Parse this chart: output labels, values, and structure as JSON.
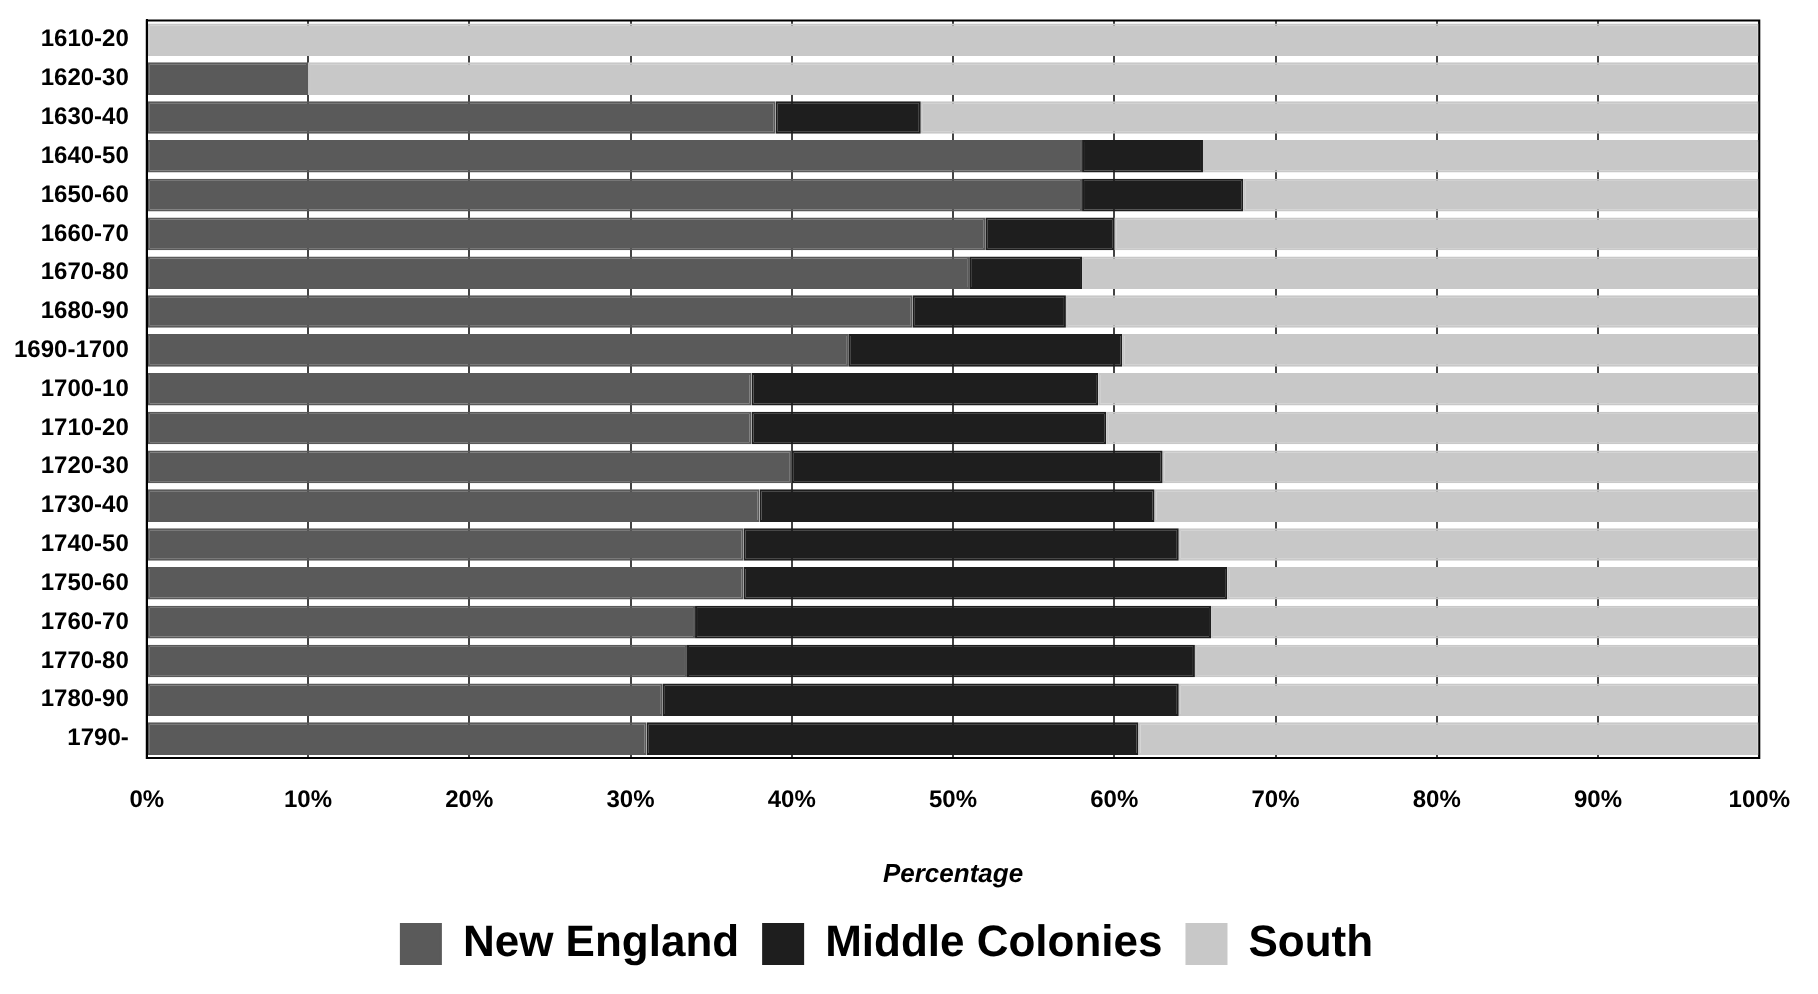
{
  "chart_data": {
    "type": "bar",
    "orientation": "horizontal",
    "stacked": true,
    "xlabel": "Percentage",
    "categories": [
      "1610-20",
      "1620-30",
      "1630-40",
      "1640-50",
      "1650-60",
      "1660-70",
      "1670-80",
      "1680-90",
      "1690-1700",
      "1700-10",
      "1710-20",
      "1720-30",
      "1730-40",
      "1740-50",
      "1750-60",
      "1760-70",
      "1770-80",
      "1780-90",
      "1790-"
    ],
    "series": [
      {
        "name": "New England",
        "color": "#5a5a5a",
        "values": [
          0,
          10,
          39,
          58,
          58,
          52,
          51,
          47.5,
          43.5,
          37.5,
          37.5,
          40,
          38,
          37,
          37,
          34,
          33.5,
          32,
          31
        ]
      },
      {
        "name": "Middle Colonies",
        "color": "#1e1e1e",
        "values": [
          0,
          0,
          9,
          7.5,
          10,
          8,
          7,
          9.5,
          17,
          21.5,
          22,
          23,
          24.5,
          27,
          30,
          32,
          31.5,
          32,
          30.5
        ]
      },
      {
        "name": "South",
        "color": "#c8c8c8",
        "values": [
          100,
          90,
          52,
          34.5,
          32,
          40,
          42,
          43,
          39.5,
          41,
          40.5,
          37,
          37.5,
          36,
          33,
          34,
          35,
          36,
          38.5
        ]
      }
    ],
    "xlim": [
      0,
      100
    ],
    "xticks": [
      {
        "value": 0,
        "label": "0%"
      },
      {
        "value": 10,
        "label": "10%"
      },
      {
        "value": 20,
        "label": "20%"
      },
      {
        "value": 30,
        "label": "30%"
      },
      {
        "value": 40,
        "label": "40%"
      },
      {
        "value": 50,
        "label": "50%"
      },
      {
        "value": 60,
        "label": "60%"
      },
      {
        "value": 70,
        "label": "70%"
      },
      {
        "value": 80,
        "label": "80%"
      },
      {
        "value": 90,
        "label": "90%"
      },
      {
        "value": 100,
        "label": "100%"
      }
    ],
    "grid": "x",
    "legend": "bottom"
  }
}
